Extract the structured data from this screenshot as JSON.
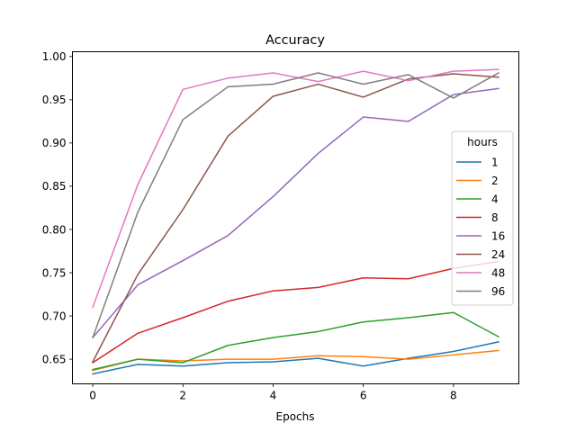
{
  "chart_data": {
    "type": "line",
    "title": "Accuracy",
    "xlabel": "Epochs",
    "ylabel": "",
    "xlim": [
      -0.45,
      9.45
    ],
    "ylim": [
      0.6215,
      1.0055
    ],
    "xticks": [
      0,
      2,
      4,
      6,
      8
    ],
    "yticks": [
      0.65,
      0.7,
      0.75,
      0.8,
      0.85,
      0.9,
      0.95,
      1.0
    ],
    "ytick_labels": [
      "0.65",
      "0.70",
      "0.75",
      "0.80",
      "0.85",
      "0.90",
      "0.95",
      "1.00"
    ],
    "grid": false,
    "legend": {
      "title": "hours",
      "placement": "center-right"
    },
    "x": [
      0,
      1,
      2,
      3,
      4,
      5,
      6,
      7,
      8,
      9
    ],
    "series": [
      {
        "name": "1",
        "color": "#1f77b4",
        "values": [
          0.633,
          0.644,
          0.642,
          0.646,
          0.647,
          0.651,
          0.642,
          0.651,
          0.659,
          0.67
        ]
      },
      {
        "name": "2",
        "color": "#ff7f0e",
        "values": [
          0.637,
          0.65,
          0.648,
          0.65,
          0.65,
          0.654,
          0.653,
          0.65,
          0.655,
          0.66
        ]
      },
      {
        "name": "4",
        "color": "#2ca02c",
        "values": [
          0.638,
          0.65,
          0.646,
          0.666,
          0.675,
          0.682,
          0.693,
          0.698,
          0.704,
          0.676
        ]
      },
      {
        "name": "8",
        "color": "#d62728",
        "values": [
          0.646,
          0.68,
          0.698,
          0.717,
          0.729,
          0.733,
          0.744,
          0.743,
          0.755,
          0.763
        ]
      },
      {
        "name": "16",
        "color": "#9467bd",
        "values": [
          0.675,
          0.736,
          0.764,
          0.793,
          0.838,
          0.888,
          0.93,
          0.925,
          0.956,
          0.963
        ]
      },
      {
        "name": "24",
        "color": "#8c564b",
        "values": [
          0.647,
          0.748,
          0.823,
          0.908,
          0.954,
          0.968,
          0.953,
          0.974,
          0.98,
          0.976
        ]
      },
      {
        "name": "48",
        "color": "#e377c2",
        "values": [
          0.71,
          0.852,
          0.962,
          0.975,
          0.981,
          0.971,
          0.983,
          0.972,
          0.983,
          0.985
        ]
      },
      {
        "name": "96",
        "color": "#7f7f7f",
        "values": [
          0.675,
          0.82,
          0.927,
          0.965,
          0.968,
          0.981,
          0.968,
          0.979,
          0.952,
          0.981
        ]
      }
    ]
  }
}
